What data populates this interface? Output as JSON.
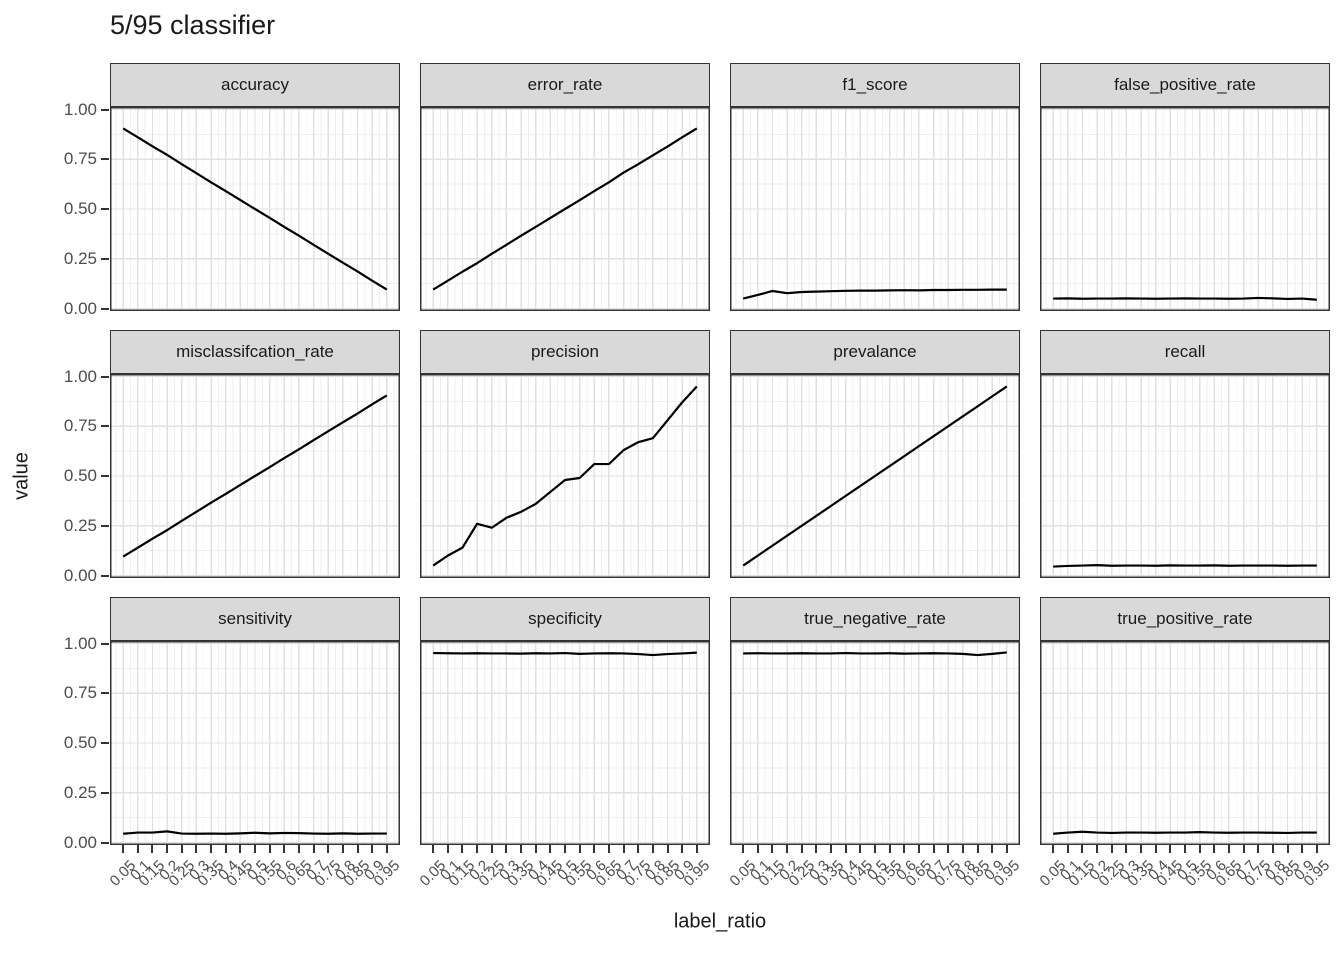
{
  "title": "5/95 classifier",
  "axes": {
    "x_title": "label_ratio",
    "y_title": "value",
    "y_tick_labels": [
      "1.00",
      "0.75",
      "0.50",
      "0.25",
      "0.00"
    ],
    "x_tick_labels": [
      "0.05",
      "0.1",
      "0.15",
      "0.2",
      "0.25",
      "0.3",
      "0.35",
      "0.4",
      "0.45",
      "0.5",
      "0.55",
      "0.6",
      "0.65",
      "0.7",
      "0.75",
      "0.8",
      "0.85",
      "0.9",
      "0.95"
    ]
  },
  "chart_data": {
    "type": "line",
    "title": "5/95 classifier",
    "xlabel": "label_ratio",
    "ylabel": "value",
    "legend_position": "none",
    "grid": "major+minor",
    "facet_layout": {
      "rows": 3,
      "cols": 4
    },
    "x": [
      0.05,
      0.1,
      0.15,
      0.2,
      0.25,
      0.3,
      0.35,
      0.4,
      0.45,
      0.5,
      0.55,
      0.6,
      0.65,
      0.7,
      0.75,
      0.8,
      0.85,
      0.9,
      0.95
    ],
    "ylim": [
      0,
      1
    ],
    "y_major_ticks": [
      1.0,
      0.75,
      0.5,
      0.25,
      0.0
    ],
    "y_minor_ticks": [
      0.875,
      0.625,
      0.375,
      0.125
    ],
    "facets": [
      {
        "label": "accuracy",
        "values": [
          0.905,
          0.86,
          0.815,
          0.772,
          0.725,
          0.68,
          0.634,
          0.59,
          0.545,
          0.5,
          0.456,
          0.41,
          0.366,
          0.32,
          0.275,
          0.23,
          0.186,
          0.14,
          0.095
        ]
      },
      {
        "label": "error_rate",
        "values": [
          0.095,
          0.14,
          0.185,
          0.228,
          0.275,
          0.32,
          0.366,
          0.41,
          0.455,
          0.5,
          0.544,
          0.59,
          0.634,
          0.683,
          0.725,
          0.77,
          0.814,
          0.86,
          0.905
        ]
      },
      {
        "label": "f1_score",
        "values": [
          0.05,
          0.068,
          0.088,
          0.077,
          0.083,
          0.085,
          0.087,
          0.089,
          0.09,
          0.09,
          0.091,
          0.092,
          0.091,
          0.093,
          0.093,
          0.094,
          0.094,
          0.095,
          0.095
        ]
      },
      {
        "label": "false_positive_rate",
        "values": [
          0.05,
          0.051,
          0.049,
          0.05,
          0.05,
          0.051,
          0.05,
          0.049,
          0.05,
          0.051,
          0.05,
          0.05,
          0.049,
          0.05,
          0.053,
          0.051,
          0.048,
          0.05,
          0.044
        ]
      },
      {
        "label": "misclassifcation_rate",
        "values": [
          0.095,
          0.14,
          0.185,
          0.228,
          0.275,
          0.32,
          0.366,
          0.41,
          0.455,
          0.5,
          0.544,
          0.59,
          0.634,
          0.68,
          0.725,
          0.77,
          0.814,
          0.86,
          0.905
        ]
      },
      {
        "label": "precision",
        "values": [
          0.05,
          0.1,
          0.14,
          0.26,
          0.24,
          0.29,
          0.32,
          0.36,
          0.42,
          0.48,
          0.49,
          0.56,
          0.56,
          0.63,
          0.67,
          0.69,
          0.78,
          0.87,
          0.95
        ]
      },
      {
        "label": "prevalance",
        "values": [
          0.05,
          0.1,
          0.15,
          0.2,
          0.25,
          0.3,
          0.35,
          0.4,
          0.45,
          0.5,
          0.55,
          0.6,
          0.65,
          0.7,
          0.75,
          0.8,
          0.85,
          0.9,
          0.95
        ]
      },
      {
        "label": "recall",
        "values": [
          0.045,
          0.048,
          0.05,
          0.052,
          0.049,
          0.05,
          0.05,
          0.049,
          0.051,
          0.05,
          0.05,
          0.051,
          0.049,
          0.05,
          0.05,
          0.05,
          0.049,
          0.05,
          0.05
        ]
      },
      {
        "label": "sensitivity",
        "values": [
          0.044,
          0.05,
          0.05,
          0.056,
          0.045,
          0.044,
          0.045,
          0.044,
          0.046,
          0.049,
          0.046,
          0.048,
          0.047,
          0.045,
          0.044,
          0.046,
          0.044,
          0.045,
          0.045
        ]
      },
      {
        "label": "specificity",
        "values": [
          0.952,
          0.951,
          0.95,
          0.951,
          0.95,
          0.95,
          0.949,
          0.951,
          0.95,
          0.952,
          0.948,
          0.95,
          0.951,
          0.95,
          0.947,
          0.942,
          0.947,
          0.95,
          0.954
        ]
      },
      {
        "label": "true_negative_rate",
        "values": [
          0.95,
          0.951,
          0.95,
          0.95,
          0.951,
          0.95,
          0.95,
          0.952,
          0.95,
          0.95,
          0.951,
          0.949,
          0.95,
          0.951,
          0.95,
          0.948,
          0.942,
          0.948,
          0.955
        ]
      },
      {
        "label": "true_positive_rate",
        "values": [
          0.044,
          0.05,
          0.054,
          0.05,
          0.048,
          0.05,
          0.05,
          0.049,
          0.05,
          0.05,
          0.052,
          0.05,
          0.049,
          0.05,
          0.05,
          0.049,
          0.048,
          0.05,
          0.05
        ]
      }
    ],
    "colors": {
      "line": "#000000",
      "strip_fill": "#d9d9d9",
      "strip_border": "#333333",
      "panel_border": "#333333",
      "grid_major": "#e0e0e0",
      "grid_minor": "#efefef",
      "axis_text": "#4d4d4d",
      "title_text": "#1a1a1a",
      "background": "#ffffff"
    }
  }
}
